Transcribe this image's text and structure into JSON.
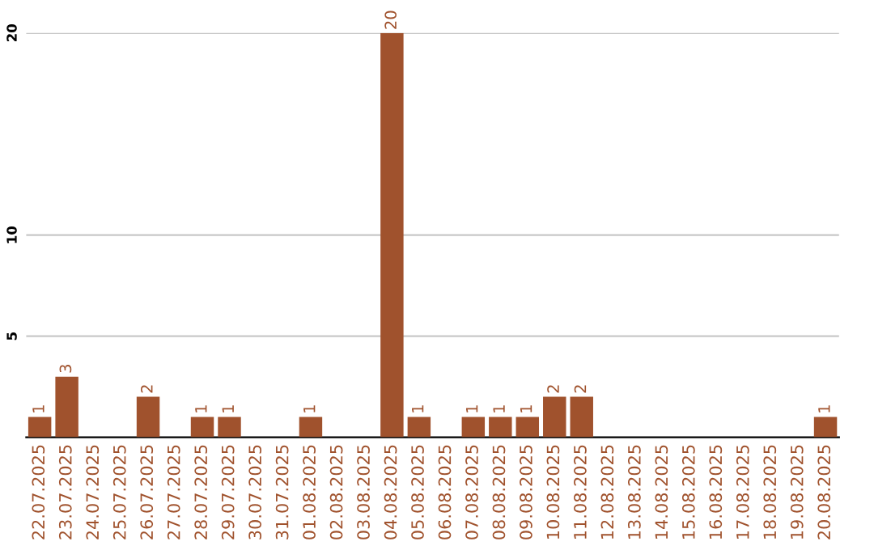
{
  "chart_data": {
    "type": "bar",
    "categories": [
      "22.07.2025",
      "23.07.2025",
      "24.07.2025",
      "25.07.2025",
      "26.07.2025",
      "27.07.2025",
      "28.07.2025",
      "29.07.2025",
      "30.07.2025",
      "31.07.2025",
      "01.08.2025",
      "02.08.2025",
      "03.08.2025",
      "04.08.2025",
      "05.08.2025",
      "06.08.2025",
      "07.08.2025",
      "08.08.2025",
      "09.08.2025",
      "10.08.2025",
      "11.08.2025",
      "12.08.2025",
      "13.08.2025",
      "14.08.2025",
      "15.08.2025",
      "16.08.2025",
      "17.08.2025",
      "18.08.2025",
      "19.08.2025",
      "20.08.2025"
    ],
    "values": [
      1,
      3,
      0,
      0,
      2,
      0,
      1,
      1,
      0,
      0,
      1,
      0,
      0,
      20,
      1,
      0,
      1,
      1,
      1,
      2,
      2,
      0,
      0,
      0,
      0,
      0,
      0,
      0,
      0,
      1
    ],
    "value_labels": [
      "1",
      "3",
      null,
      null,
      "2",
      null,
      "1",
      "1",
      null,
      null,
      "1",
      null,
      null,
      "20",
      "1",
      null,
      "1",
      "1",
      "1",
      "2",
      "2",
      null,
      null,
      null,
      null,
      null,
      null,
      null,
      null,
      "1"
    ],
    "color": "#a0522d",
    "ylim": [
      0,
      20
    ],
    "yticks": [
      5,
      10,
      20
    ],
    "grid": "y"
  }
}
